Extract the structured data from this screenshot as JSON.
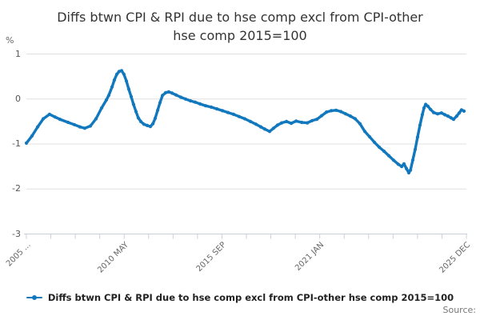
{
  "title": {
    "lines": [
      "Diffs btwn CPI & RPI due to hse comp excl from CPI-other",
      "hse comp 2015=100"
    ]
  },
  "y_axis": {
    "unit_label": "%",
    "ticks": [
      1,
      0,
      -1,
      -2,
      -3
    ]
  },
  "x_axis": {
    "tick_count": 19,
    "labels": [
      {
        "text": "2005 ...",
        "tick": 0
      },
      {
        "text": "2010 MAY",
        "tick": 4
      },
      {
        "text": "2015 SEP",
        "tick": 8
      },
      {
        "text": "2021 JAN",
        "tick": 12
      },
      {
        "text": "2025 DEC",
        "tick": 18
      }
    ]
  },
  "legend": {
    "label": "Diffs btwn CPI & RPI due to hse comp excl from CPI-other hse comp 2015=100"
  },
  "source": {
    "label": "Source:"
  },
  "colors": {
    "line": "#1278be",
    "grid": "#e0e0e0",
    "axis": "#c9d0db",
    "y_text": "#555555",
    "x_text": "#666666"
  },
  "chart_data": {
    "type": "line",
    "title": "Diffs btwn CPI & RPI due to hse comp excl from CPI-other hse comp 2015=100",
    "xlabel": "",
    "ylabel": "%",
    "ylim": [
      -3,
      1
    ],
    "xlim": [
      2005.0,
      2026.0
    ],
    "x_range": [
      "2005 JAN",
      "2025 DEC"
    ],
    "grid": true,
    "legend_position": "bottom",
    "series": [
      {
        "name": "Diffs btwn CPI & RPI due to hse comp excl from CPI-other hse comp 2015=100",
        "points": [
          [
            2005.0,
            -0.98
          ],
          [
            2005.27,
            -0.82
          ],
          [
            2005.54,
            -0.62
          ],
          [
            2005.81,
            -0.44
          ],
          [
            2006.11,
            -0.34
          ],
          [
            2006.38,
            -0.4
          ],
          [
            2006.61,
            -0.45
          ],
          [
            2007.0,
            -0.52
          ],
          [
            2007.3,
            -0.57
          ],
          [
            2007.57,
            -0.62
          ],
          [
            2007.8,
            -0.65
          ],
          [
            2008.07,
            -0.6
          ],
          [
            2008.34,
            -0.44
          ],
          [
            2008.61,
            -0.2
          ],
          [
            2008.84,
            -0.02
          ],
          [
            2008.95,
            0.08
          ],
          [
            2009.11,
            0.27
          ],
          [
            2009.22,
            0.42
          ],
          [
            2009.34,
            0.55
          ],
          [
            2009.45,
            0.61
          ],
          [
            2009.57,
            0.63
          ],
          [
            2009.68,
            0.55
          ],
          [
            2009.8,
            0.4
          ],
          [
            2009.91,
            0.22
          ],
          [
            2010.03,
            0.05
          ],
          [
            2010.14,
            -0.12
          ],
          [
            2010.26,
            -0.28
          ],
          [
            2010.37,
            -0.42
          ],
          [
            2010.49,
            -0.5
          ],
          [
            2010.64,
            -0.56
          ],
          [
            2010.8,
            -0.59
          ],
          [
            2010.95,
            -0.61
          ],
          [
            2011.07,
            -0.55
          ],
          [
            2011.18,
            -0.43
          ],
          [
            2011.3,
            -0.25
          ],
          [
            2011.41,
            -0.08
          ],
          [
            2011.53,
            0.08
          ],
          [
            2011.68,
            0.14
          ],
          [
            2011.83,
            0.16
          ],
          [
            2011.99,
            0.13
          ],
          [
            2012.18,
            0.09
          ],
          [
            2012.41,
            0.04
          ],
          [
            2012.64,
            0.0
          ],
          [
            2012.87,
            -0.04
          ],
          [
            2013.1,
            -0.07
          ],
          [
            2013.33,
            -0.11
          ],
          [
            2013.6,
            -0.15
          ],
          [
            2013.87,
            -0.18
          ],
          [
            2014.14,
            -0.22
          ],
          [
            2014.41,
            -0.26
          ],
          [
            2014.67,
            -0.3
          ],
          [
            2014.94,
            -0.34
          ],
          [
            2015.21,
            -0.39
          ],
          [
            2015.48,
            -0.44
          ],
          [
            2015.75,
            -0.5
          ],
          [
            2016.02,
            -0.56
          ],
          [
            2016.25,
            -0.62
          ],
          [
            2016.44,
            -0.67
          ],
          [
            2016.67,
            -0.72
          ],
          [
            2016.86,
            -0.65
          ],
          [
            2017.05,
            -0.58
          ],
          [
            2017.25,
            -0.53
          ],
          [
            2017.48,
            -0.5
          ],
          [
            2017.71,
            -0.54
          ],
          [
            2017.94,
            -0.49
          ],
          [
            2018.21,
            -0.52
          ],
          [
            2018.48,
            -0.53
          ],
          [
            2018.71,
            -0.48
          ],
          [
            2018.94,
            -0.45
          ],
          [
            2019.17,
            -0.37
          ],
          [
            2019.4,
            -0.29
          ],
          [
            2019.63,
            -0.26
          ],
          [
            2019.86,
            -0.25
          ],
          [
            2020.09,
            -0.28
          ],
          [
            2020.32,
            -0.33
          ],
          [
            2020.55,
            -0.38
          ],
          [
            2020.78,
            -0.44
          ],
          [
            2021.01,
            -0.55
          ],
          [
            2021.24,
            -0.72
          ],
          [
            2021.47,
            -0.84
          ],
          [
            2021.7,
            -0.96
          ],
          [
            2021.93,
            -1.07
          ],
          [
            2022.16,
            -1.16
          ],
          [
            2022.39,
            -1.26
          ],
          [
            2022.62,
            -1.36
          ],
          [
            2022.85,
            -1.45
          ],
          [
            2023.01,
            -1.5
          ],
          [
            2023.12,
            -1.44
          ],
          [
            2023.24,
            -1.55
          ],
          [
            2023.35,
            -1.64
          ],
          [
            2023.43,
            -1.58
          ],
          [
            2023.54,
            -1.36
          ],
          [
            2023.66,
            -1.12
          ],
          [
            2023.77,
            -0.85
          ],
          [
            2023.89,
            -0.58
          ],
          [
            2024.0,
            -0.35
          ],
          [
            2024.08,
            -0.2
          ],
          [
            2024.16,
            -0.12
          ],
          [
            2024.27,
            -0.16
          ],
          [
            2024.39,
            -0.23
          ],
          [
            2024.54,
            -0.3
          ],
          [
            2024.73,
            -0.33
          ],
          [
            2024.92,
            -0.31
          ],
          [
            2025.08,
            -0.35
          ],
          [
            2025.23,
            -0.38
          ],
          [
            2025.38,
            -0.42
          ],
          [
            2025.5,
            -0.45
          ],
          [
            2025.65,
            -0.38
          ],
          [
            2025.77,
            -0.31
          ],
          [
            2025.88,
            -0.24
          ],
          [
            2026.0,
            -0.27
          ]
        ]
      }
    ]
  }
}
